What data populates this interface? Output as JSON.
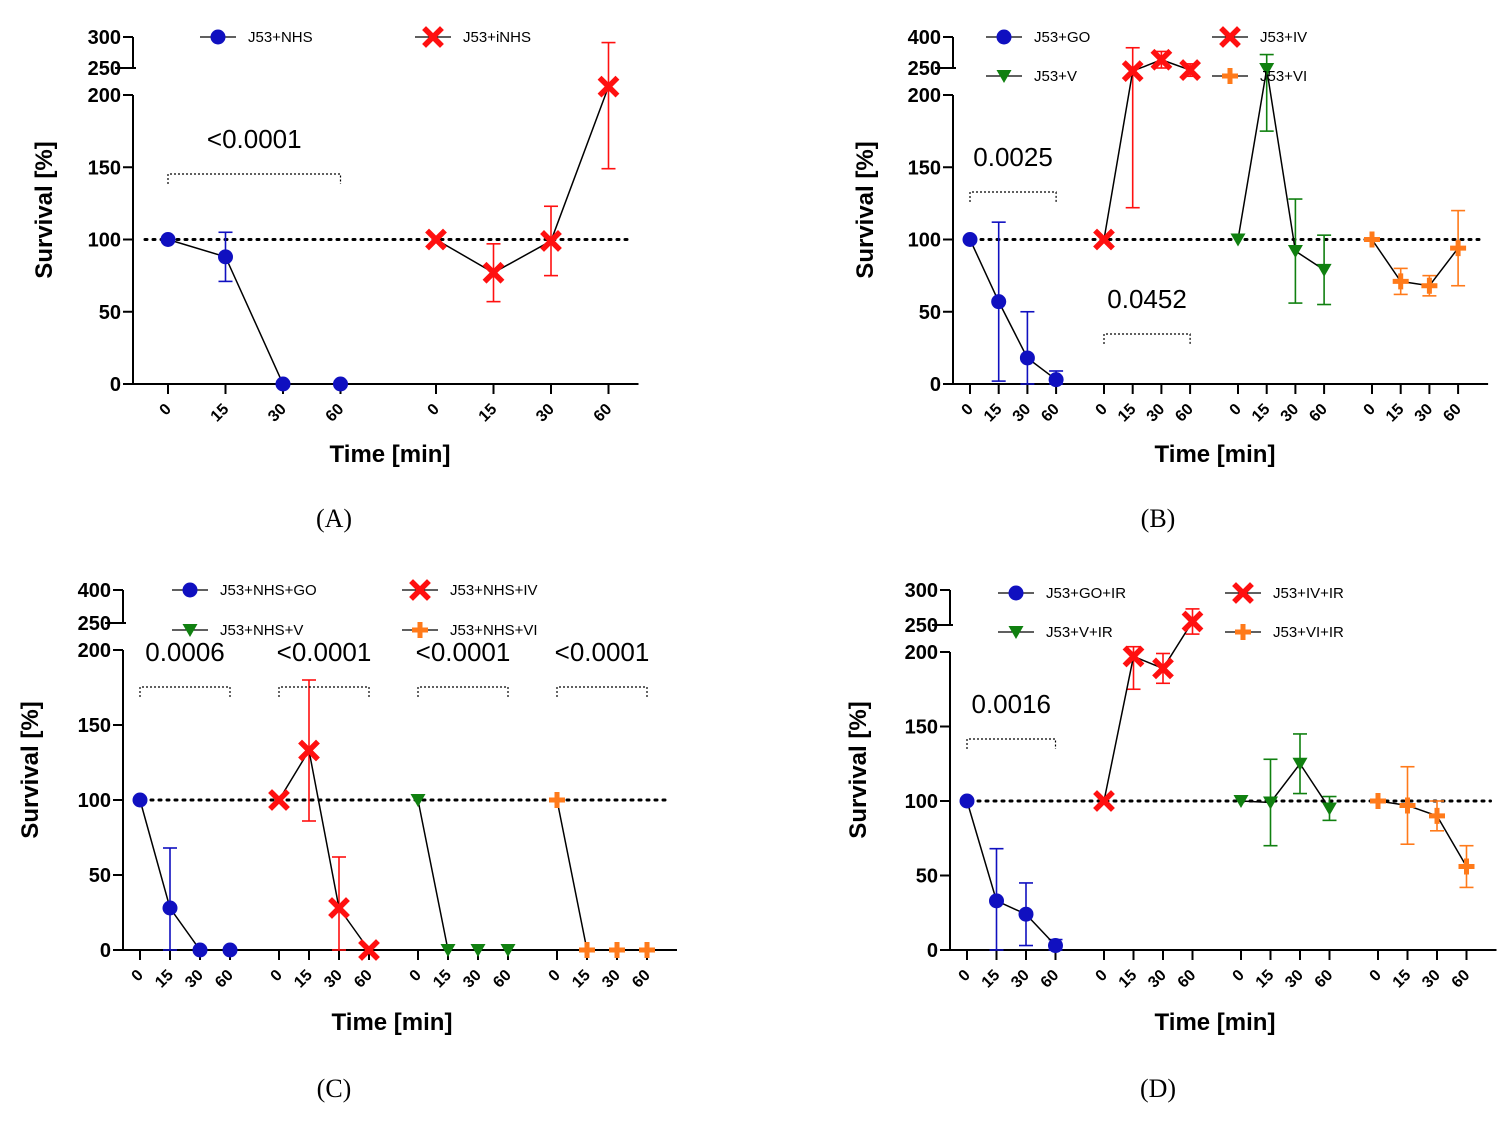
{
  "figure": {
    "panel_labels": [
      "(A)",
      "(B)",
      "(C)",
      "(D)"
    ]
  },
  "chart_data": [
    {
      "panel": "A",
      "type": "line",
      "xlabel": "Time [min]",
      "ylabel": "Survival [%]",
      "ylim": [
        0,
        300
      ],
      "y_ticks_lower": [
        0,
        50,
        100,
        150,
        200
      ],
      "y_ticks_upper": [
        250,
        300
      ],
      "y_axis_break": true,
      "reference_line": 100,
      "legend_position": "top",
      "series": [
        {
          "name": "J53+NHS",
          "color": "#1010c0",
          "marker": "circle",
          "x": [
            0,
            15,
            30,
            60
          ],
          "values": [
            100,
            88,
            0,
            0
          ],
          "err": [
            0,
            17,
            0,
            0
          ]
        },
        {
          "name": "J53+iNHS",
          "color": "#ff1010",
          "marker": "x",
          "x": [
            0,
            15,
            30,
            60
          ],
          "values": [
            100,
            77,
            99,
            220
          ],
          "err": [
            0,
            20,
            24,
            71
          ]
        }
      ],
      "annotations": [
        {
          "text": "<0.0001",
          "from_series": 0,
          "span": [
            0,
            60
          ]
        }
      ]
    },
    {
      "panel": "B",
      "type": "line",
      "xlabel": "Time [min]",
      "ylabel": "Survival [%]",
      "ylim": [
        0,
        400
      ],
      "y_ticks_lower": [
        0,
        50,
        100,
        150,
        200
      ],
      "y_ticks_upper": [
        250,
        400
      ],
      "y_axis_break": true,
      "reference_line": 100,
      "legend_position": "top",
      "series": [
        {
          "name": "J53+GO",
          "color": "#1010c0",
          "marker": "circle",
          "x": [
            0,
            15,
            30,
            60
          ],
          "values": [
            100,
            57,
            18,
            3
          ],
          "err": [
            0,
            55,
            32,
            6
          ]
        },
        {
          "name": "J53+IV",
          "color": "#ff1010",
          "marker": "x",
          "x": [
            0,
            15,
            30,
            60
          ],
          "values": [
            100,
            235,
            290,
            240
          ],
          "err": [
            0,
            113,
            40,
            30
          ]
        },
        {
          "name": "J53+V",
          "color": "#108010",
          "marker": "triangle",
          "x": [
            0,
            15,
            30,
            60
          ],
          "values": [
            100,
            245,
            92,
            79
          ],
          "err": [
            0,
            70,
            36,
            24
          ]
        },
        {
          "name": "J53+VI",
          "color": "#ff7a1a",
          "marker": "plus",
          "x": [
            0,
            15,
            30,
            60
          ],
          "values": [
            100,
            71,
            68,
            94
          ],
          "err": [
            0,
            9,
            7,
            26
          ]
        }
      ],
      "annotations": [
        {
          "text": "0.0025",
          "from_series": 0,
          "span": [
            0,
            60
          ]
        },
        {
          "text": "0.0452",
          "from_series": 1,
          "span": [
            0,
            60
          ],
          "low": true
        }
      ]
    },
    {
      "panel": "C",
      "type": "line",
      "xlabel": "Time [min]",
      "ylabel": "Survival [%]",
      "ylim": [
        0,
        400
      ],
      "y_ticks_lower": [
        0,
        50,
        100,
        150,
        200
      ],
      "y_ticks_upper": [
        250,
        400
      ],
      "y_axis_break": true,
      "reference_line": 100,
      "legend_position": "top",
      "series": [
        {
          "name": "J53+NHS+GO",
          "color": "#1010c0",
          "marker": "circle",
          "x": [
            0,
            15,
            30,
            60
          ],
          "values": [
            100,
            28,
            0,
            0
          ],
          "err": [
            0,
            40,
            0,
            0
          ]
        },
        {
          "name": "J53+NHS+IV",
          "color": "#ff1010",
          "marker": "x",
          "x": [
            0,
            15,
            30,
            60
          ],
          "values": [
            100,
            133,
            28,
            0
          ],
          "err": [
            0,
            47,
            34,
            0
          ]
        },
        {
          "name": "J53+NHS+V",
          "color": "#108010",
          "marker": "triangle",
          "x": [
            0,
            15,
            30,
            60
          ],
          "values": [
            100,
            0,
            0,
            0
          ],
          "err": [
            0,
            0,
            0,
            0
          ]
        },
        {
          "name": "J53+NHS+VI",
          "color": "#ff7a1a",
          "marker": "plus",
          "x": [
            0,
            15,
            30,
            60
          ],
          "values": [
            100,
            0,
            0,
            0
          ],
          "err": [
            0,
            0,
            0,
            0
          ]
        }
      ],
      "annotations": [
        {
          "text": "0.0006",
          "from_series": 0,
          "span": [
            0,
            60
          ]
        },
        {
          "text": "<0.0001",
          "from_series": 1,
          "span": [
            0,
            60
          ]
        },
        {
          "text": "<0.0001",
          "from_series": 2,
          "span": [
            0,
            60
          ]
        },
        {
          "text": "<0.0001",
          "from_series": 3,
          "span": [
            0,
            60
          ]
        }
      ]
    },
    {
      "panel": "D",
      "type": "line",
      "xlabel": "Time [min]",
      "ylabel": "Survival [%]",
      "ylim": [
        0,
        300
      ],
      "y_ticks_lower": [
        0,
        50,
        100,
        150,
        200
      ],
      "y_ticks_upper": [
        250,
        300
      ],
      "y_axis_break": true,
      "reference_line": 100,
      "legend_position": "top",
      "series": [
        {
          "name": "J53+GO+IR",
          "color": "#1010c0",
          "marker": "circle",
          "x": [
            0,
            15,
            30,
            60
          ],
          "values": [
            100,
            33,
            24,
            3
          ],
          "err": [
            0,
            35,
            21,
            4
          ]
        },
        {
          "name": "J53+IV+IR",
          "color": "#ff1010",
          "marker": "x",
          "x": [
            0,
            15,
            30,
            60
          ],
          "values": [
            100,
            197,
            189,
            255
          ],
          "err": [
            0,
            22,
            10,
            18
          ]
        },
        {
          "name": "J53+V+IR",
          "color": "#108010",
          "marker": "triangle",
          "x": [
            0,
            15,
            30,
            60
          ],
          "values": [
            100,
            99,
            125,
            95
          ],
          "err": [
            0,
            29,
            20,
            8
          ]
        },
        {
          "name": "J53+VI+IR",
          "color": "#ff7a1a",
          "marker": "plus",
          "x": [
            0,
            15,
            30,
            60
          ],
          "values": [
            100,
            97,
            90,
            56
          ],
          "err": [
            0,
            26,
            10,
            14
          ]
        }
      ],
      "annotations": [
        {
          "text": "0.0016",
          "from_series": 0,
          "span": [
            0,
            60
          ]
        }
      ]
    }
  ]
}
